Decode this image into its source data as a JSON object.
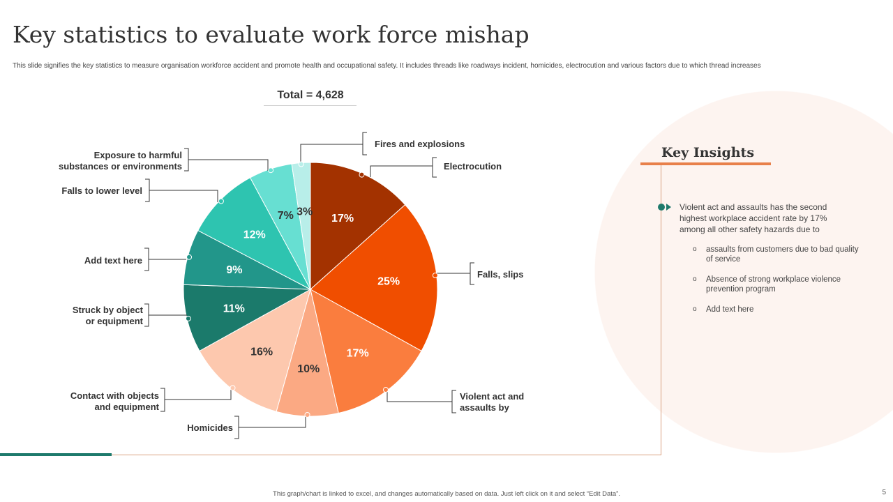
{
  "title": "Key statistics to evaluate work force mishap",
  "subtitle": "This slide signifies the key statistics to measure organisation workforce accident and promote health and occupational safety. It includes threads like roadways incident, homicides, electrocution and various factors due to which thread increases",
  "total_label": "Total = 4,628",
  "chart_data": {
    "type": "pie",
    "title": "Total = 4,628",
    "slices": [
      {
        "label": "Electrocution",
        "value": 17,
        "display": "17%",
        "color": "#a33200"
      },
      {
        "label": "Falls, slips",
        "value": 25,
        "display": "25%",
        "color": "#f04e00"
      },
      {
        "label": "Violent act and assaults  by",
        "value": 17,
        "display": "17%",
        "color": "#fa7d3e"
      },
      {
        "label": "Homicides",
        "value": 10,
        "display": "10%",
        "color": "#fba983"
      },
      {
        "label": "Contact with objects and equipment",
        "value": 16,
        "display": "16%",
        "color": "#fdc8ae"
      },
      {
        "label": "Struck by object or equipment",
        "value": 11,
        "display": "11%",
        "color": "#1b7a6b"
      },
      {
        "label": "Add text here",
        "value": 9,
        "display": "9%",
        "color": "#22968a"
      },
      {
        "label": "Falls to lower level",
        "value": 12,
        "display": "12%",
        "color": "#2ec4b0"
      },
      {
        "label": "Exposure to harmful substances  or environments",
        "value": 7,
        "display": "7%",
        "color": "#67dfd2"
      },
      {
        "label": "Fires and explosions",
        "value": 3,
        "display": "3%",
        "color": "#b8eee9"
      }
    ]
  },
  "key_insights": {
    "title": "Key Insights",
    "main": "Violent act and assaults has the second highest workplace  accident rate by 17% among all other safety hazards due to",
    "subs": [
      "assaults from customers due to bad quality of service",
      "Absence of strong workplace violence prevention program",
      "Add text here"
    ]
  },
  "footer": "This graph/chart is linked to excel, and changes automatically based on data. Just left click on it and select “Edit Data”.",
  "page_number": "5"
}
